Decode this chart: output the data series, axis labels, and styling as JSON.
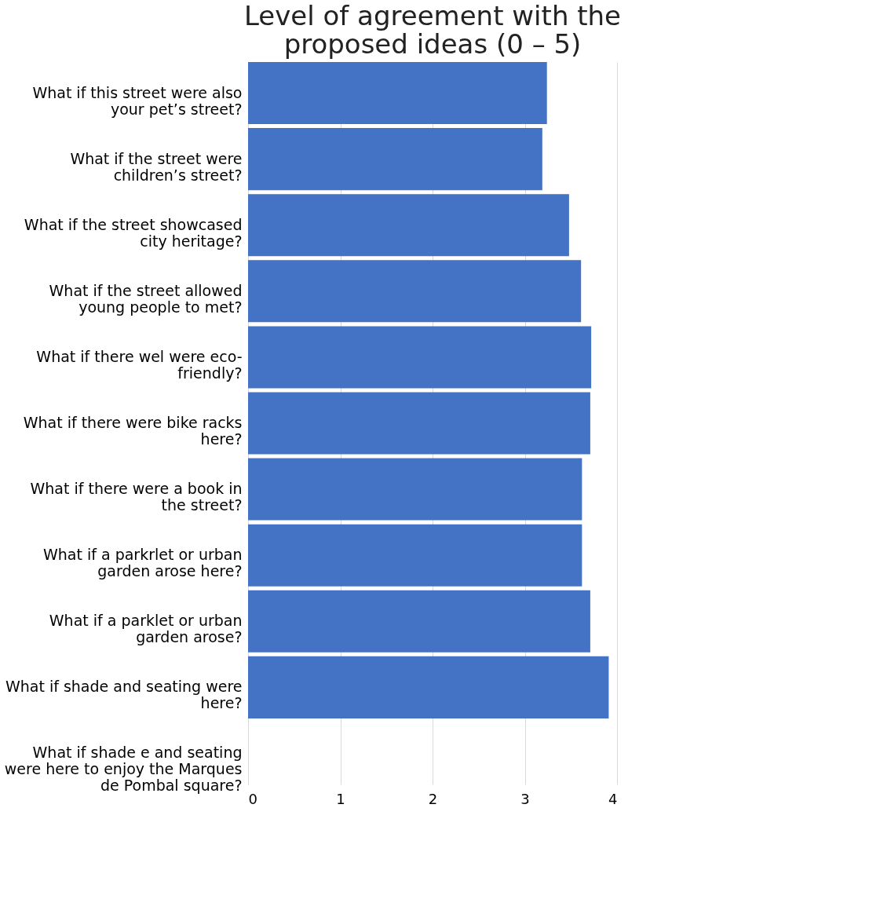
{
  "chart_data": {
    "type": "bar",
    "orientation": "horizontal",
    "title": "Level of agreement with the proposed ideas (0 – 5)",
    "categories": [
      "What if this street were also your pet’s street?",
      "What if the street were children’s street?",
      "What if the street showcased city heritage?",
      "What if the street allowed young people to met?",
      "What if there wel were eco-friendly?",
      "What if there were bike racks here?",
      "What if there were a book in the street?",
      "What if a parkrlet or urban garden arose here?",
      "What if a parklet or urban garden arose?",
      "What if shade and seating were here?",
      "What if shade e and seating were here to enjoy the Marques de Pombal square?"
    ],
    "values": [
      3.24,
      3.19,
      3.48,
      3.61,
      3.72,
      3.71,
      3.62,
      3.62,
      3.71,
      3.91,
      null
    ],
    "color": "#4472c4",
    "xlim": [
      0,
      4
    ],
    "xticks": [
      0,
      1,
      2,
      3,
      4
    ],
    "grid": "x"
  }
}
